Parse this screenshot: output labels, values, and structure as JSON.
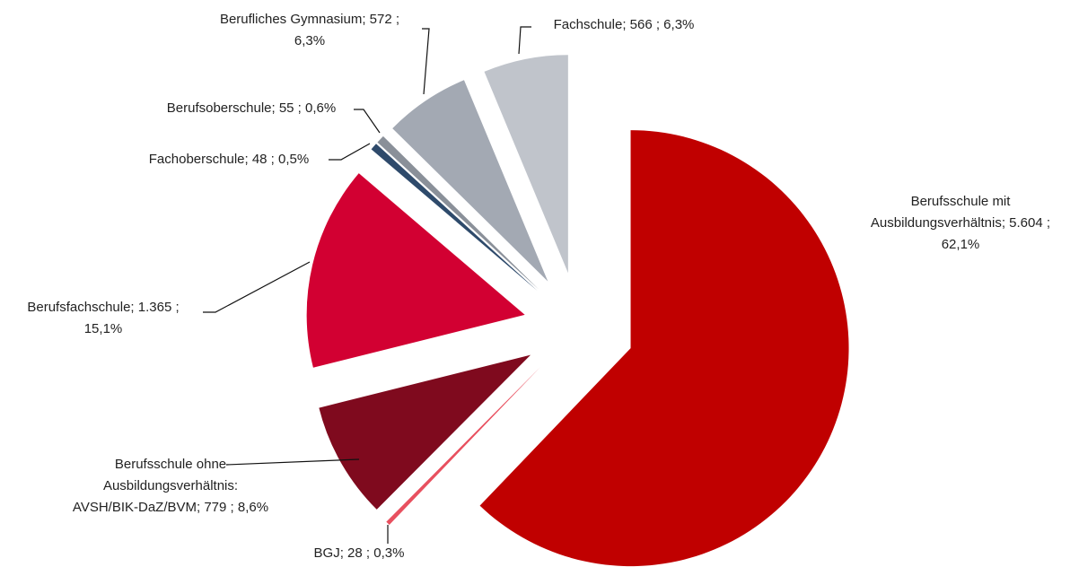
{
  "chart_data": {
    "type": "pie",
    "labels": [
      [
        "Berufsschule mit",
        "Ausbildungsverhältnis; 5.604  ;",
        "62,1%"
      ],
      [
        "BGJ; 28  ; 0,3%"
      ],
      [
        "Berufsschule ohne",
        "Ausbildungsverhältnis:",
        "AVSH/BIK-DaZ/BVM; 779  ; 8,6%"
      ],
      [
        "Berufsfachschule; 1.365  ;",
        "15,1%"
      ],
      [
        "Fachoberschule; 48  ; 0,5%"
      ],
      [
        "Berufsoberschule; 55  ; 0,6%"
      ],
      [
        "Berufliches Gymnasium; 572  ;",
        "6,3%"
      ],
      [
        "Fachschule; 566  ; 6,3%"
      ]
    ],
    "values": [
      5604,
      28,
      779,
      1365,
      48,
      55,
      572,
      566
    ],
    "colors": [
      "#c00000",
      "#e8505f",
      "#7f0a1e",
      "#d20032",
      "#2e4a6b",
      "#8a9099",
      "#a3a9b3",
      "#c0c4cb"
    ]
  }
}
